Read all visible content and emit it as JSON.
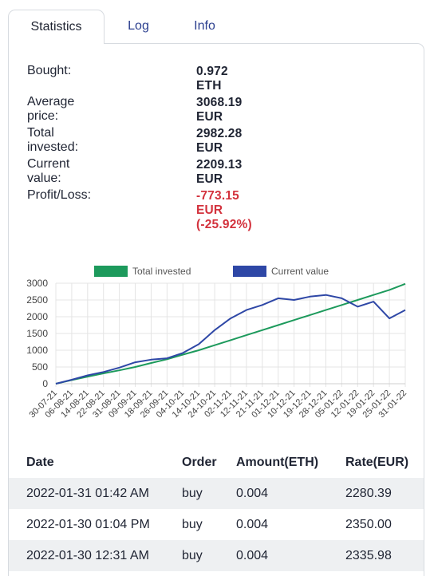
{
  "tabs": [
    {
      "label": "Statistics",
      "active": true
    },
    {
      "label": "Log",
      "active": false
    },
    {
      "label": "Info",
      "active": false
    }
  ],
  "stats": [
    {
      "label": "Bought:",
      "value": "0.972 ETH"
    },
    {
      "label": "Average price:",
      "value": "3068.19 EUR"
    },
    {
      "label": "Total invested:",
      "value": "2982.28 EUR"
    },
    {
      "label": "Current value:",
      "value": "2209.13 EUR"
    },
    {
      "label": "Profit/Loss:",
      "value": "-773.15 EUR (-25.92%)",
      "color": "#d3323d"
    }
  ],
  "colors": {
    "invested": "#1d9a5c",
    "current": "#2e47a6",
    "loss": "#d3323d",
    "tab_link": "#2b3f8f"
  },
  "chart_data": {
    "type": "line",
    "legend": [
      "Total invested",
      "Current value"
    ],
    "legend_position": "top",
    "grid": true,
    "ylim": [
      0,
      3000
    ],
    "yticks": [
      0,
      500,
      1000,
      1500,
      2000,
      2500,
      3000
    ],
    "xticks": [
      "30-07-21",
      "06-08-21",
      "14-08-21",
      "22-08-21",
      "31-08-21",
      "09-09-21",
      "18-09-21",
      "26-09-21",
      "04-10-21",
      "14-10-21",
      "24-10-21",
      "02-11-21",
      "12-11-21",
      "21-11-21",
      "01-12-21",
      "10-12-21",
      "19-12-21",
      "28-12-21",
      "05-01-22",
      "12-01-22",
      "19-01-22",
      "25-01-22",
      "31-01-22"
    ],
    "series": [
      {
        "name": "Total invested",
        "x": [
          "30-07-21",
          "06-08-21",
          "14-08-21",
          "22-08-21",
          "31-08-21",
          "09-09-21",
          "18-09-21",
          "26-09-21",
          "04-10-21",
          "14-10-21",
          "24-10-21",
          "02-11-21",
          "12-11-21",
          "21-11-21",
          "01-12-21",
          "10-12-21",
          "19-12-21",
          "28-12-21",
          "05-01-22",
          "12-01-22",
          "19-01-22",
          "25-01-22",
          "31-01-22"
        ],
        "values": [
          0,
          110,
          210,
          310,
          400,
          500,
          620,
          730,
          870,
          1000,
          1150,
          1300,
          1450,
          1600,
          1750,
          1900,
          2050,
          2200,
          2350,
          2500,
          2650,
          2800,
          2980
        ]
      },
      {
        "name": "Current value",
        "x": [
          "30-07-21",
          "06-08-21",
          "14-08-21",
          "22-08-21",
          "31-08-21",
          "09-09-21",
          "18-09-21",
          "26-09-21",
          "04-10-21",
          "14-10-21",
          "24-10-21",
          "02-11-21",
          "12-11-21",
          "21-11-21",
          "01-12-21",
          "10-12-21",
          "19-12-21",
          "28-12-21",
          "05-01-22",
          "12-01-22",
          "19-01-22",
          "25-01-22",
          "31-01-22"
        ],
        "values": [
          0,
          120,
          250,
          350,
          480,
          640,
          720,
          760,
          920,
          1180,
          1600,
          1950,
          2200,
          2350,
          2550,
          2500,
          2600,
          2650,
          2550,
          2300,
          2450,
          1950,
          2200
        ]
      }
    ]
  },
  "table": {
    "headers": [
      "Date",
      "Order",
      "Amount(ETH)",
      "Rate(EUR)"
    ],
    "rows": [
      [
        "2022-01-31 01:42 AM",
        "buy",
        "0.004",
        "2280.39"
      ],
      [
        "2022-01-30 01:04 PM",
        "buy",
        "0.004",
        "2350.00"
      ],
      [
        "2022-01-30 12:31 AM",
        "buy",
        "0.004",
        "2335.98"
      ]
    ]
  }
}
